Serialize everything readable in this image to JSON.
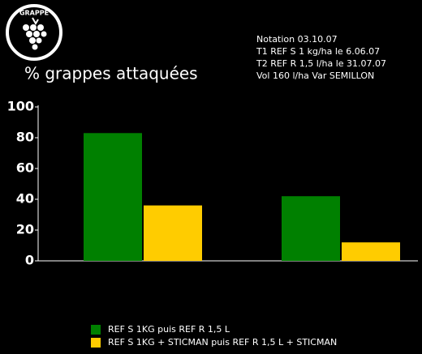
{
  "logo": "GRAPPE",
  "notes": [
    "Notation  03.10.07",
    "T1 REF S 1 kg/ha le 6.06.07",
    "T2 REF R 1,5 l/ha le 31.07.07",
    "Vol 160 l/ha      Var SEMILLON"
  ],
  "chart_data": {
    "type": "bar",
    "title": "% grappes attaquées",
    "categories": [
      null,
      null
    ],
    "series": [
      {
        "name": "REF S 1KG puis REF R 1,5 L",
        "color": "#008000",
        "values": [
          83,
          42
        ]
      },
      {
        "name": "REF S 1KG + STICMAN puis REF R 1,5 L + STICMAN",
        "color": "#ffcc00",
        "values": [
          36,
          12
        ]
      }
    ],
    "ylim": [
      0,
      100
    ],
    "yticks": [
      0,
      20,
      40,
      60,
      80,
      100
    ],
    "grid": false
  }
}
